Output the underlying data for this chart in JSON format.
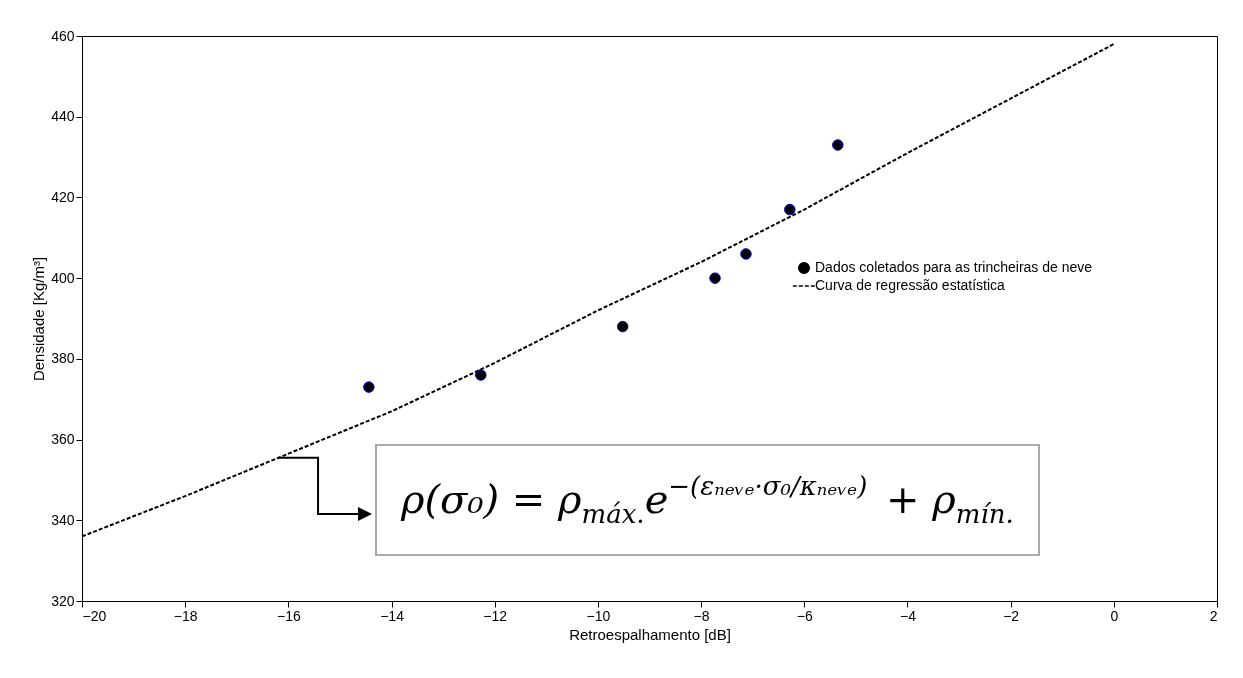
{
  "chart_data": {
    "type": "scatter",
    "xlabel": "Retroespalhamento [dB]",
    "ylabel": "Densidade [Kg/m³]",
    "xlim": [
      -20,
      2
    ],
    "xticks": [
      -20,
      -18,
      -16,
      -14,
      -12,
      -10,
      -8,
      -6,
      -4,
      -2,
      0,
      2
    ],
    "ylim": [
      320,
      460
    ],
    "yticks": [
      320,
      340,
      360,
      380,
      400,
      420,
      440,
      460
    ],
    "grid": false,
    "legend": "right",
    "marker": "circle",
    "series": [
      {
        "name": "Dados coletados para as trincheiras de neve",
        "color": "#000000",
        "x": [
          -14.44,
          -12.27,
          -9.52,
          -7.73,
          -7.13,
          -6.28,
          -5.35
        ],
        "values": [
          373,
          376,
          388,
          400,
          406,
          417,
          433
        ]
      },
      {
        "name": "Curva de regressão estatística",
        "type": "line",
        "color": "#000000",
        "marker": "none",
        "line_style": "dashed",
        "x": [
          -20,
          -18,
          -16,
          -14,
          -12,
          -10,
          -8,
          -6,
          -4,
          -2,
          0
        ],
        "values": [
          336,
          346,
          356.5,
          367,
          379,
          392,
          404,
          417,
          431,
          444.5,
          458
        ]
      }
    ],
    "annotations": [
      {
        "text": "ρ(σ₀) = ρ$_{máx.}$e$^{−(εₙₑᵥₑ·σ₀/κₙₑᵥₑ)}$ + ρ$_{mín.}$",
        "x": -16.2,
        "y": 356
      }
    ]
  }
}
